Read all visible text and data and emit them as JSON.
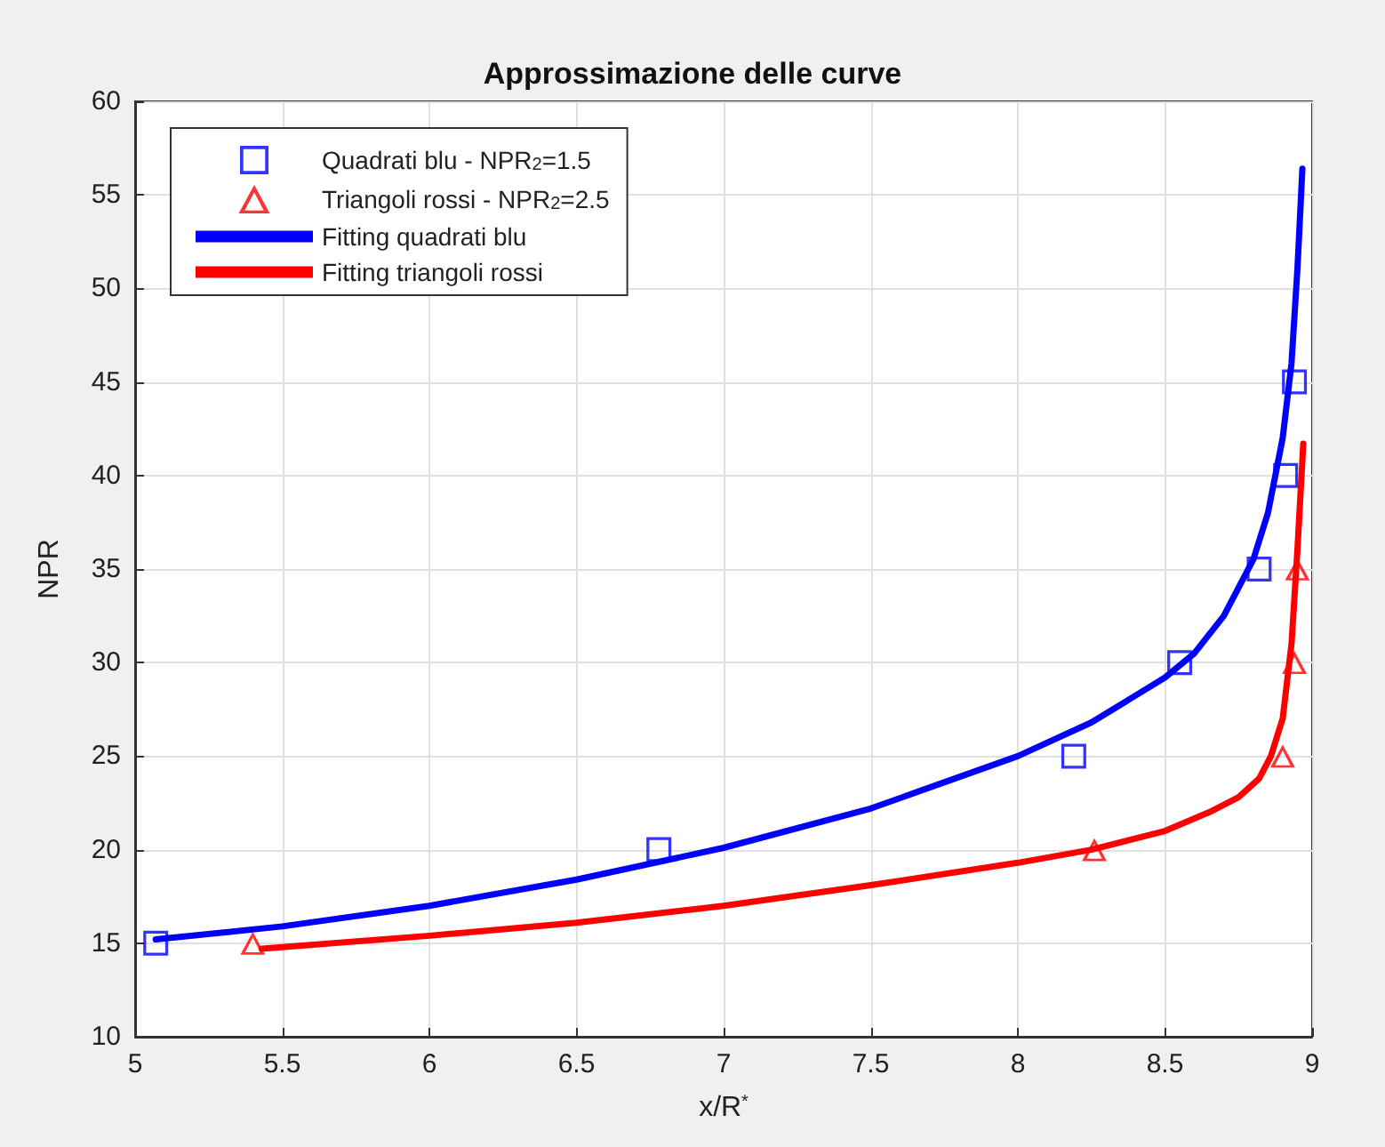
{
  "chart_data": {
    "type": "scatter",
    "title": "Approssimazione delle curve",
    "xlabel": "x/R$^{*}$",
    "ylabel": "NPR",
    "xlim": [
      5,
      9
    ],
    "xticks": [
      5,
      5.5,
      6,
      6.5,
      7,
      7.5,
      8,
      8.5,
      9
    ],
    "ylim": [
      10,
      60
    ],
    "yticks": [
      10,
      15,
      20,
      25,
      30,
      35,
      40,
      45,
      50,
      55,
      60
    ],
    "grid": true,
    "legend": "top left",
    "series": [
      {
        "name": "Quadrati blu - NPR$_{2}$=1.5",
        "marker": "square",
        "color": "#0000ff",
        "x": [
          5.07,
          6.78,
          8.19,
          8.55,
          8.82,
          8.91,
          8.94
        ],
        "values": [
          15,
          20,
          25,
          30,
          35,
          40,
          45
        ]
      },
      {
        "name": "Triangoli rossi - NPR$_{2}$=2.5",
        "marker": "triangle",
        "color": "#ff0000",
        "x": [
          5.4,
          8.26,
          8.9,
          8.94,
          8.95
        ],
        "values": [
          15,
          20,
          25,
          30,
          35
        ]
      },
      {
        "name": "Fitting quadrati blu",
        "type": "line",
        "marker": "none",
        "line_style": "solid",
        "color": "#0000ff",
        "x": [
          5.07,
          5.5,
          6,
          6.5,
          7,
          7.5,
          8,
          8.25,
          8.5,
          8.6,
          8.7,
          8.8,
          8.85,
          8.9,
          8.93,
          8.95,
          8.967
        ],
        "values": [
          15.2,
          15.9,
          17,
          18.4,
          20.1,
          22.2,
          25,
          26.8,
          29.2,
          30.5,
          32.5,
          35.5,
          38,
          42,
          46,
          51,
          56.4
        ]
      },
      {
        "name": "Fitting triangoli rossi",
        "type": "line",
        "marker": "none",
        "line_style": "solid",
        "color": "#ff0000",
        "x": [
          5.43,
          6,
          6.5,
          7,
          7.5,
          8,
          8.25,
          8.5,
          8.65,
          8.75,
          8.82,
          8.86,
          8.9,
          8.93,
          8.95,
          8.97
        ],
        "values": [
          14.7,
          15.4,
          16.1,
          17,
          18.1,
          19.3,
          20,
          21,
          22,
          22.8,
          23.8,
          25,
          27,
          31,
          36,
          41.7
        ]
      }
    ]
  }
}
